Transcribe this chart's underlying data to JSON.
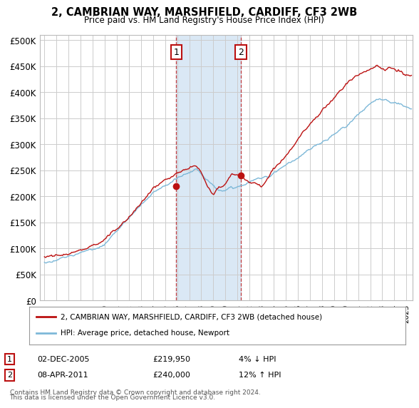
{
  "title1": "2, CAMBRIAN WAY, MARSHFIELD, CARDIFF, CF3 2WB",
  "title2": "Price paid vs. HM Land Registry's House Price Index (HPI)",
  "ylabel_ticks": [
    "£0",
    "£50K",
    "£100K",
    "£150K",
    "£200K",
    "£250K",
    "£300K",
    "£350K",
    "£400K",
    "£450K",
    "£500K"
  ],
  "ytick_values": [
    0,
    50000,
    100000,
    150000,
    200000,
    250000,
    300000,
    350000,
    400000,
    450000,
    500000
  ],
  "ylim": [
    0,
    510000
  ],
  "xlim_start": 1994.6,
  "xlim_end": 2025.5,
  "transaction1_date": 2005.92,
  "transaction1_price": 219950,
  "transaction1_label": "1",
  "transaction2_date": 2011.27,
  "transaction2_price": 240000,
  "transaction2_label": "2",
  "shade_start": 2005.92,
  "shade_end": 2011.27,
  "shade_color": "#dae8f5",
  "hpi_color": "#7db8d8",
  "price_color": "#bb1111",
  "grid_color": "#cccccc",
  "background_color": "#ffffff",
  "legend_entry1": "2, CAMBRIAN WAY, MARSHFIELD, CARDIFF, CF3 2WB (detached house)",
  "legend_entry2": "HPI: Average price, detached house, Newport",
  "footnote1": "Contains HM Land Registry data © Crown copyright and database right 2024.",
  "footnote2": "This data is licensed under the Open Government Licence v3.0.",
  "table_row1_num": "1",
  "table_row1_date": "02-DEC-2005",
  "table_row1_price": "£219,950",
  "table_row1_hpi": "4% ↓ HPI",
  "table_row2_num": "2",
  "table_row2_date": "08-APR-2011",
  "table_row2_price": "£240,000",
  "table_row2_hpi": "12% ↑ HPI"
}
